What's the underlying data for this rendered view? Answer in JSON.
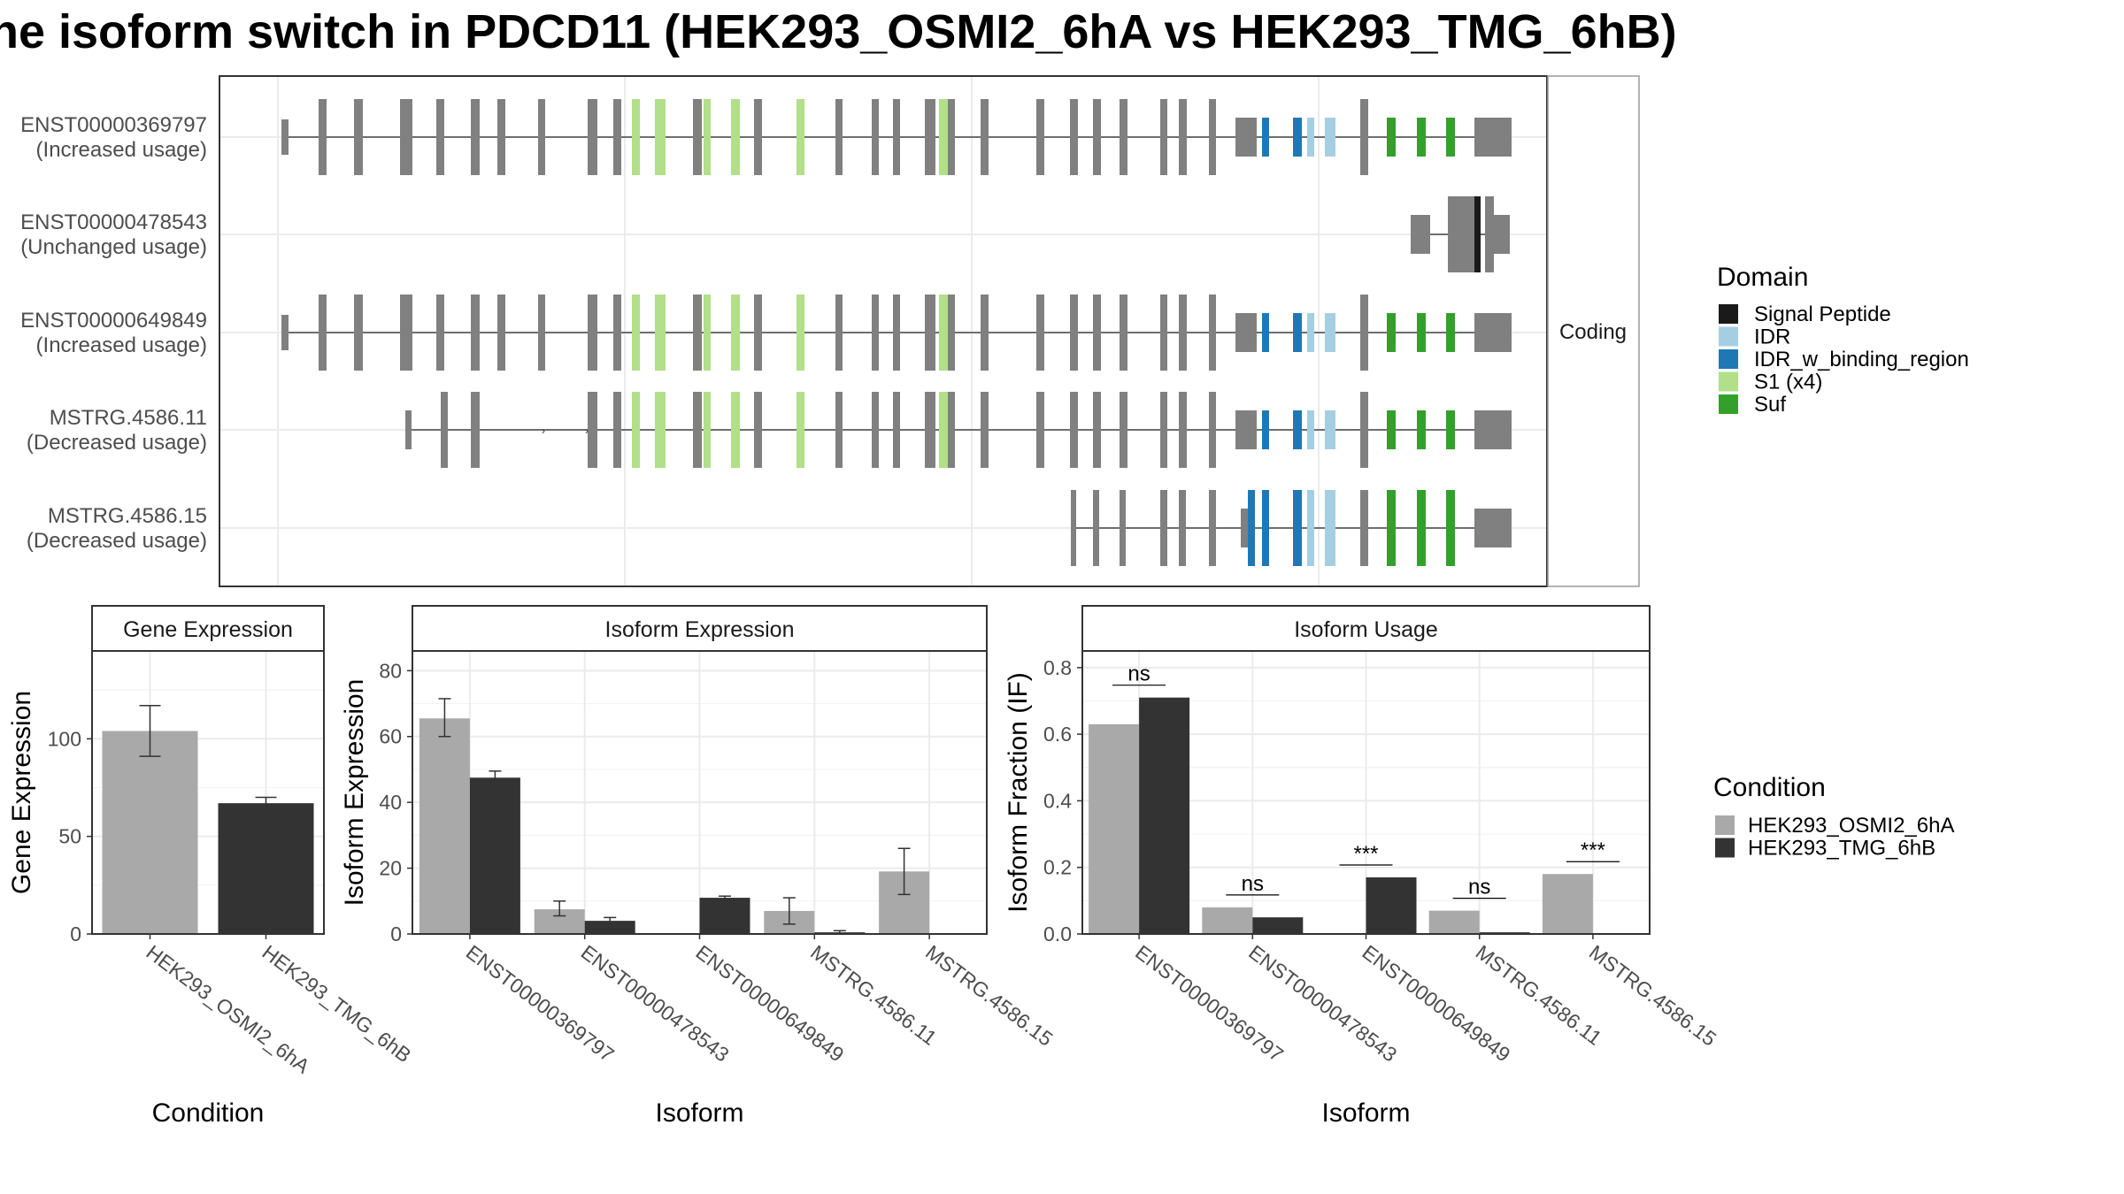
{
  "title": "he isoform switch in PDCD11 (HEK293_OSMI2_6hA vs HEK293_TMG_6hB)",
  "colors": {
    "condA": "#a9a9a9",
    "condB": "#333333",
    "exon": "#808080",
    "grid": "#ebebeb",
    "domain_signal": "#1a1a1a",
    "domain_idr": "#a6cee3",
    "domain_idr_bind": "#1f78b4",
    "domain_s1": "#b2df8a",
    "domain_suf": "#33a02c"
  },
  "structure": {
    "strip_label": "Coding",
    "isoforms": [
      {
        "id": "ENST00000369797",
        "status": "(Increased usage)"
      },
      {
        "id": "ENST00000478543",
        "status": "(Unchanged usage)"
      },
      {
        "id": "ENST00000649849",
        "status": "(Increased usage)"
      },
      {
        "id": "MSTRG.4586.11",
        "status": "(Decreased usage)"
      },
      {
        "id": "MSTRG.4586.15",
        "status": "(Decreased usage)"
      }
    ]
  },
  "legend_domain": {
    "title": "Domain",
    "items": [
      {
        "label": "Signal Peptide",
        "color": "#1a1a1a"
      },
      {
        "label": "IDR",
        "color": "#a6cee3"
      },
      {
        "label": "IDR_w_binding_region",
        "color": "#1f78b4"
      },
      {
        "label": "S1 (x4)",
        "color": "#b2df8a"
      },
      {
        "label": "Suf",
        "color": "#33a02c"
      }
    ]
  },
  "legend_condition": {
    "title": "Condition",
    "items": [
      {
        "label": "HEK293_OSMI2_6hA",
        "color": "#a9a9a9"
      },
      {
        "label": "HEK293_TMG_6hB",
        "color": "#333333"
      }
    ]
  },
  "chart_data": [
    {
      "type": "bar",
      "panel": "Gene Expression",
      "title": "Gene Expression",
      "xlabel": "Condition",
      "ylabel": "Gene Expression",
      "categories": [
        "HEK293_OSMI2_6hA",
        "HEK293_TMG_6hB"
      ],
      "values": [
        104,
        67
      ],
      "error": [
        [
          91,
          117
        ],
        [
          64,
          70
        ]
      ],
      "yticks": [
        0,
        50,
        100
      ],
      "ylim": [
        0,
        145
      ],
      "grid": true
    },
    {
      "type": "bar",
      "panel": "Isoform Expression",
      "title": "Isoform Expression",
      "xlabel": "Isoform",
      "ylabel": "Isoform Expression",
      "categories": [
        "ENST00000369797",
        "ENST00000478543",
        "ENST00000649849",
        "MSTRG.4586.11",
        "MSTRG.4586.15"
      ],
      "series": [
        {
          "name": "HEK293_OSMI2_6hA",
          "values": [
            65.5,
            7.5,
            0,
            7,
            19
          ],
          "error": [
            [
              60,
              71.5
            ],
            [
              5.5,
              10
            ],
            [
              0,
              0
            ],
            [
              3,
              11
            ],
            [
              12,
              26
            ]
          ]
        },
        {
          "name": "HEK293_TMG_6hB",
          "values": [
            47.5,
            4,
            11,
            0.5,
            0
          ],
          "error": [
            [
              45.5,
              49.5
            ],
            [
              3,
              5
            ],
            [
              10.5,
              11.5
            ],
            [
              0,
              1
            ],
            [
              0,
              0
            ]
          ]
        }
      ],
      "yticks": [
        0,
        20,
        40,
        60,
        80
      ],
      "ylim": [
        0,
        86
      ],
      "grid": true
    },
    {
      "type": "bar",
      "panel": "Isoform Usage",
      "title": "Isoform Usage",
      "xlabel": "Isoform",
      "ylabel": "Isoform Fraction (IF)",
      "categories": [
        "ENST00000369797",
        "ENST00000478543",
        "ENST00000649849",
        "MSTRG.4586.11",
        "MSTRG.4586.15"
      ],
      "series": [
        {
          "name": "HEK293_OSMI2_6hA",
          "values": [
            0.63,
            0.08,
            0,
            0.07,
            0.18
          ]
        },
        {
          "name": "HEK293_TMG_6hB",
          "values": [
            0.71,
            0.05,
            0.17,
            0.005,
            0
          ]
        }
      ],
      "significance": [
        "ns",
        "ns",
        "***",
        "ns",
        "***"
      ],
      "yticks": [
        0,
        0.2,
        0.4,
        0.6,
        0.8
      ],
      "ytick_labels": [
        "0.0",
        "0.2",
        "0.4",
        "0.6",
        "0.8"
      ],
      "ylim": [
        0,
        0.85
      ],
      "grid": true
    }
  ]
}
